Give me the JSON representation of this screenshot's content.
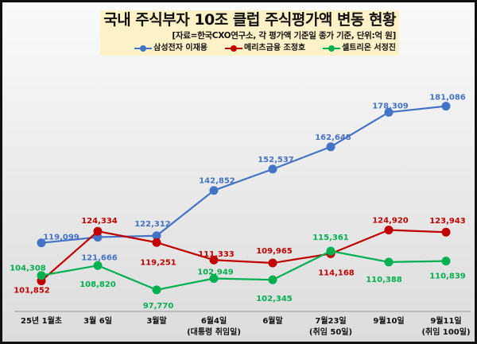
{
  "chart_data": {
    "type": "line",
    "title": "국내 주식부자 10조 클럽 주식평가액 변동 현황",
    "subtitle": "[자료=한국CXO연구소, 각 평가액 기준일 종가 기준, 단위:억 원]",
    "categories": [
      "25년 1월초",
      "3월 6일",
      "3월말",
      "6월4일\n(대통령 취임일)",
      "6월말",
      "7월23일\n(취임 50일)",
      "9월10일",
      "9월11일\n(취임 100일)"
    ],
    "ylim": [
      88000,
      195000
    ],
    "grid": false,
    "legend_position": "top",
    "series": [
      {
        "name": "삼성전자 이재용",
        "color": "#4472C4",
        "values": [
          119099,
          121666,
          122312,
          142852,
          152537,
          162648,
          178309,
          181086
        ],
        "labels": [
          "119,099",
          "121,666",
          "122,312",
          "142,852",
          "152,537",
          "162,648",
          "178,309",
          "181,086"
        ]
      },
      {
        "name": "메리츠금융 조정호",
        "color": "#C00000",
        "values": [
          101852,
          124334,
          119251,
          111333,
          109965,
          114168,
          124920,
          123943
        ],
        "labels": [
          "101,852",
          "124,334",
          "119,251",
          "111,333",
          "109,965",
          "114,168",
          "124,920",
          "123,943"
        ]
      },
      {
        "name": "셀트리온 서정진",
        "color": "#00B050",
        "values": [
          104308,
          108820,
          97770,
          102949,
          102345,
          115361,
          110388,
          110839
        ],
        "labels": [
          "104,308",
          "108,820",
          "97,770",
          "102,949",
          "102,345",
          "115,361",
          "110,388",
          "110,839"
        ]
      }
    ]
  }
}
